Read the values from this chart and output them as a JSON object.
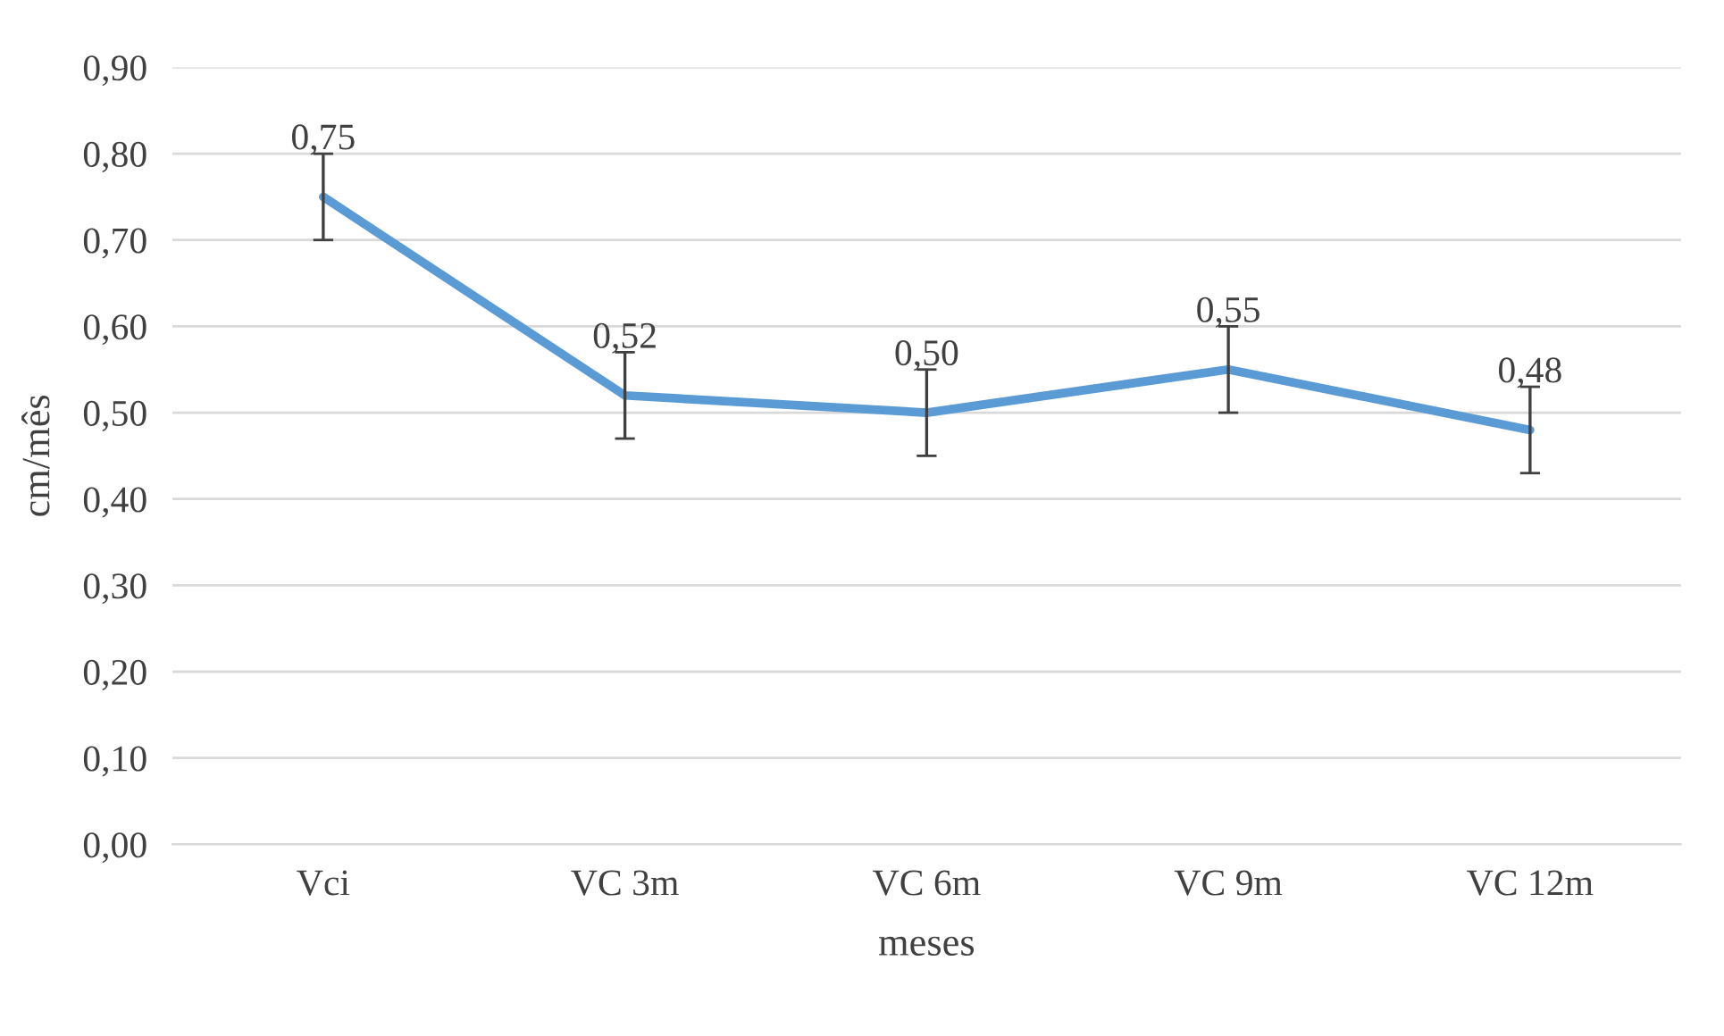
{
  "chart_data": {
    "type": "line",
    "xlabel": "meses",
    "ylabel": "cm/mês",
    "categories": [
      "Vci",
      "VC 3m",
      "VC 6m",
      "VC 9m",
      "VC 12m"
    ],
    "series": [
      {
        "color": "#5b9bd5",
        "values": [
          0.75,
          0.52,
          0.5,
          0.55,
          0.48
        ],
        "errors": [
          0.05,
          0.05,
          0.05,
          0.05,
          0.05
        ],
        "value_labels": [
          "0,75",
          "0,52",
          "0,50",
          "0,55",
          "0,48"
        ]
      }
    ],
    "ylim": [
      0,
      0.9
    ],
    "yticks": [
      {
        "value": 0,
        "label": "0,00"
      },
      {
        "value": 0.1,
        "label": "0,10"
      },
      {
        "value": 0.2,
        "label": "0,20"
      },
      {
        "value": 0.3,
        "label": "0,30"
      },
      {
        "value": 0.4,
        "label": "0,40"
      },
      {
        "value": 0.5,
        "label": "0,50"
      },
      {
        "value": 0.6,
        "label": "0,60"
      },
      {
        "value": 0.7,
        "label": "0,70"
      },
      {
        "value": 0.8,
        "label": "0,80"
      },
      {
        "value": 0.9,
        "label": "0,90"
      }
    ],
    "grid": "y",
    "marker": "none",
    "line_style": "solid"
  }
}
